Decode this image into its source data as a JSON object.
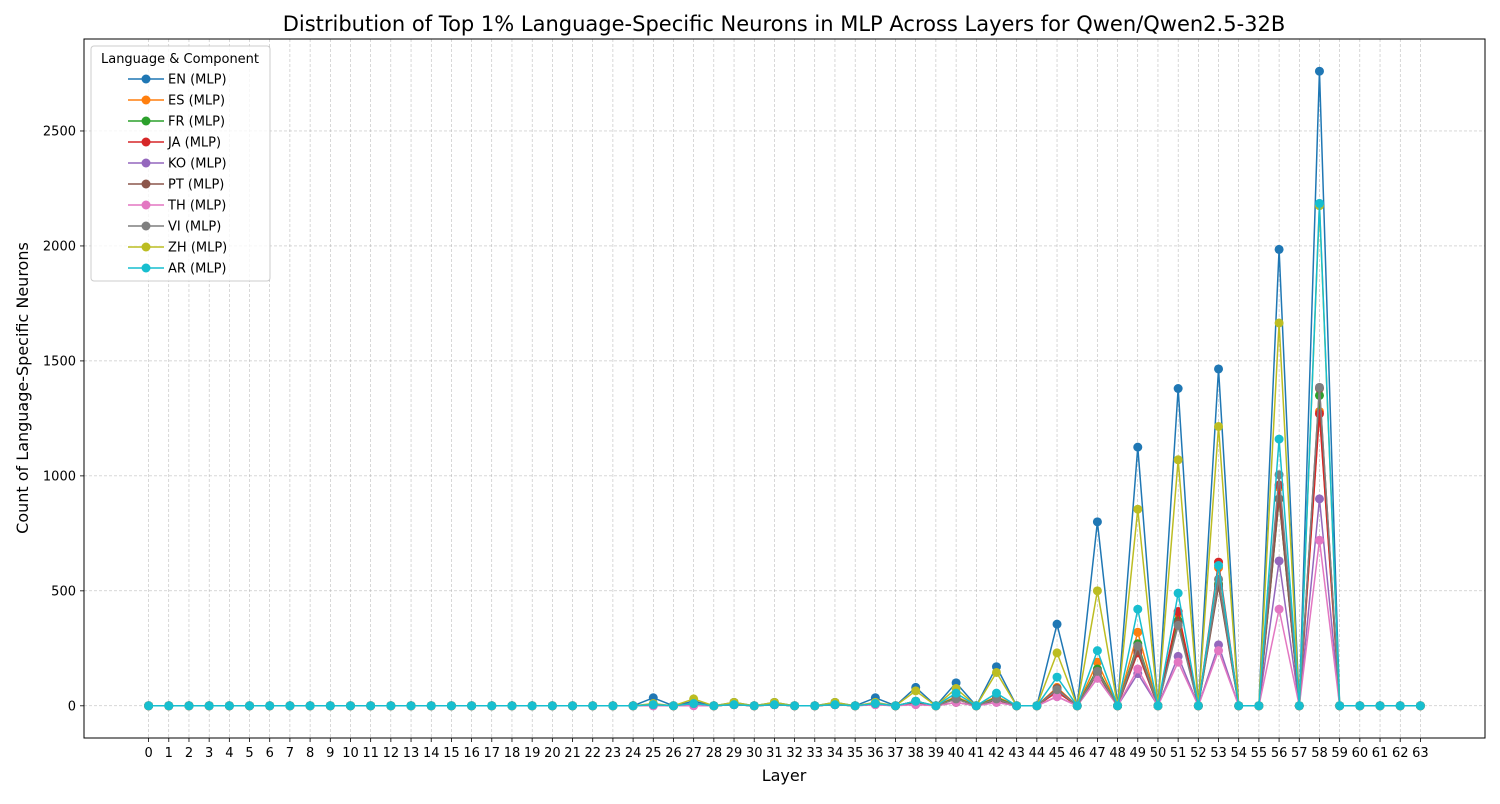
{
  "chart_data": {
    "type": "line",
    "title": "Distribution of Top 1% Language-Specific Neurons in MLP Across Layers for Qwen/Qwen2.5-32B",
    "xlabel": "Layer",
    "ylabel": "Count of Language-Specific Neurons",
    "xlim": [
      -3.2,
      66.2
    ],
    "ylim": [
      -140,
      2900
    ],
    "grid": true,
    "x": [
      0,
      1,
      2,
      3,
      4,
      5,
      6,
      7,
      8,
      9,
      10,
      11,
      12,
      13,
      14,
      15,
      16,
      17,
      18,
      19,
      20,
      21,
      22,
      23,
      24,
      25,
      26,
      27,
      28,
      29,
      30,
      31,
      32,
      33,
      34,
      35,
      36,
      37,
      38,
      39,
      40,
      41,
      42,
      43,
      44,
      45,
      46,
      47,
      48,
      49,
      50,
      51,
      52,
      53,
      54,
      55,
      56,
      57,
      58,
      59,
      60,
      61,
      62,
      63
    ],
    "yticks": [
      0,
      500,
      1000,
      1500,
      2000,
      2500
    ],
    "legend": {
      "title": "Language & Component",
      "position": "upper-left"
    },
    "series": [
      {
        "name": "EN (MLP)",
        "color": "#1f77b4",
        "values": [
          0,
          0,
          0,
          0,
          0,
          0,
          0,
          0,
          0,
          0,
          0,
          0,
          0,
          0,
          0,
          0,
          0,
          0,
          0,
          0,
          0,
          0,
          0,
          0,
          0,
          35,
          0,
          20,
          0,
          15,
          0,
          15,
          0,
          0,
          15,
          0,
          35,
          0,
          80,
          0,
          100,
          0,
          170,
          0,
          0,
          355,
          0,
          800,
          0,
          1125,
          0,
          1380,
          0,
          1465,
          0,
          0,
          1985,
          0,
          2760,
          0,
          0,
          0,
          0,
          0
        ]
      },
      {
        "name": "ES (MLP)",
        "color": "#ff7f0e",
        "values": [
          0,
          0,
          0,
          0,
          0,
          0,
          0,
          0,
          0,
          0,
          0,
          0,
          0,
          0,
          0,
          0,
          0,
          0,
          0,
          0,
          0,
          0,
          0,
          0,
          0,
          5,
          0,
          10,
          0,
          5,
          0,
          5,
          0,
          0,
          5,
          0,
          10,
          0,
          20,
          0,
          40,
          0,
          40,
          0,
          0,
          80,
          0,
          190,
          0,
          320,
          0,
          400,
          0,
          600,
          0,
          0,
          950,
          0,
          1280,
          0,
          0,
          0,
          0,
          0
        ]
      },
      {
        "name": "FR (MLP)",
        "color": "#2ca02c",
        "values": [
          0,
          0,
          0,
          0,
          0,
          0,
          0,
          0,
          0,
          0,
          0,
          0,
          0,
          0,
          0,
          0,
          0,
          0,
          0,
          0,
          0,
          0,
          0,
          0,
          0,
          5,
          0,
          10,
          0,
          5,
          0,
          5,
          0,
          0,
          5,
          0,
          10,
          0,
          20,
          0,
          35,
          0,
          35,
          0,
          0,
          70,
          0,
          160,
          0,
          270,
          0,
          370,
          0,
          530,
          0,
          0,
          900,
          0,
          1350,
          0,
          0,
          0,
          0,
          0
        ]
      },
      {
        "name": "JA (MLP)",
        "color": "#d62728",
        "values": [
          0,
          0,
          0,
          0,
          0,
          0,
          0,
          0,
          0,
          0,
          0,
          0,
          0,
          0,
          0,
          0,
          0,
          0,
          0,
          0,
          0,
          0,
          0,
          0,
          0,
          5,
          0,
          10,
          0,
          5,
          0,
          5,
          0,
          0,
          5,
          0,
          10,
          0,
          15,
          0,
          30,
          0,
          30,
          0,
          0,
          60,
          0,
          150,
          0,
          230,
          0,
          410,
          0,
          625,
          0,
          0,
          960,
          0,
          1270,
          0,
          0,
          0,
          0,
          0
        ]
      },
      {
        "name": "KO (MLP)",
        "color": "#9467bd",
        "values": [
          0,
          0,
          0,
          0,
          0,
          0,
          0,
          0,
          0,
          0,
          0,
          0,
          0,
          0,
          0,
          0,
          0,
          0,
          0,
          0,
          0,
          0,
          0,
          0,
          0,
          0,
          0,
          5,
          0,
          5,
          0,
          5,
          0,
          0,
          5,
          0,
          5,
          0,
          10,
          0,
          15,
          0,
          15,
          0,
          0,
          40,
          0,
          120,
          0,
          140,
          0,
          215,
          0,
          265,
          0,
          0,
          630,
          0,
          900,
          0,
          0,
          0,
          0,
          0
        ]
      },
      {
        "name": "PT (MLP)",
        "color": "#8c564b",
        "values": [
          0,
          0,
          0,
          0,
          0,
          0,
          0,
          0,
          0,
          0,
          0,
          0,
          0,
          0,
          0,
          0,
          0,
          0,
          0,
          0,
          0,
          0,
          0,
          0,
          0,
          5,
          0,
          10,
          0,
          5,
          0,
          5,
          0,
          0,
          5,
          0,
          10,
          0,
          15,
          0,
          15,
          0,
          25,
          0,
          0,
          75,
          0,
          140,
          0,
          240,
          0,
          360,
          0,
          520,
          0,
          0,
          900,
          0,
          1380,
          0,
          0,
          0,
          0,
          0
        ]
      },
      {
        "name": "TH (MLP)",
        "color": "#e377c2",
        "values": [
          0,
          0,
          0,
          0,
          0,
          0,
          0,
          0,
          0,
          0,
          0,
          0,
          0,
          0,
          0,
          0,
          0,
          0,
          0,
          0,
          0,
          0,
          0,
          0,
          0,
          0,
          0,
          0,
          0,
          5,
          0,
          5,
          0,
          0,
          5,
          0,
          5,
          0,
          5,
          0,
          15,
          0,
          15,
          0,
          0,
          40,
          0,
          120,
          0,
          160,
          0,
          190,
          0,
          240,
          0,
          0,
          420,
          0,
          720,
          0,
          0,
          0,
          0,
          0
        ]
      },
      {
        "name": "VI (MLP)",
        "color": "#7f7f7f",
        "values": [
          0,
          0,
          0,
          0,
          0,
          0,
          0,
          0,
          0,
          0,
          0,
          0,
          0,
          0,
          0,
          0,
          0,
          0,
          0,
          0,
          0,
          0,
          0,
          0,
          0,
          5,
          0,
          10,
          0,
          5,
          0,
          5,
          0,
          0,
          5,
          0,
          10,
          0,
          20,
          0,
          30,
          0,
          30,
          0,
          0,
          70,
          0,
          150,
          0,
          260,
          0,
          350,
          0,
          550,
          0,
          0,
          1005,
          0,
          1385,
          0,
          0,
          0,
          0,
          0
        ]
      },
      {
        "name": "ZH (MLP)",
        "color": "#bcbd22",
        "values": [
          0,
          0,
          0,
          0,
          0,
          0,
          0,
          0,
          0,
          0,
          0,
          0,
          0,
          0,
          0,
          0,
          0,
          0,
          0,
          0,
          0,
          0,
          0,
          0,
          0,
          10,
          0,
          30,
          0,
          15,
          0,
          15,
          0,
          0,
          15,
          0,
          15,
          0,
          65,
          0,
          75,
          0,
          145,
          0,
          0,
          230,
          0,
          500,
          0,
          855,
          0,
          1070,
          0,
          1215,
          0,
          0,
          1665,
          0,
          2175,
          0,
          0,
          0,
          0,
          0
        ]
      },
      {
        "name": "AR (MLP)",
        "color": "#17becf",
        "values": [
          0,
          0,
          0,
          0,
          0,
          0,
          0,
          0,
          0,
          0,
          0,
          0,
          0,
          0,
          0,
          0,
          0,
          0,
          0,
          0,
          0,
          0,
          0,
          0,
          0,
          5,
          0,
          10,
          0,
          5,
          0,
          5,
          0,
          0,
          5,
          0,
          10,
          0,
          20,
          0,
          55,
          0,
          55,
          0,
          0,
          125,
          0,
          240,
          0,
          420,
          0,
          490,
          0,
          610,
          0,
          0,
          1160,
          0,
          2185,
          0,
          0,
          0,
          0,
          0
        ]
      }
    ]
  }
}
